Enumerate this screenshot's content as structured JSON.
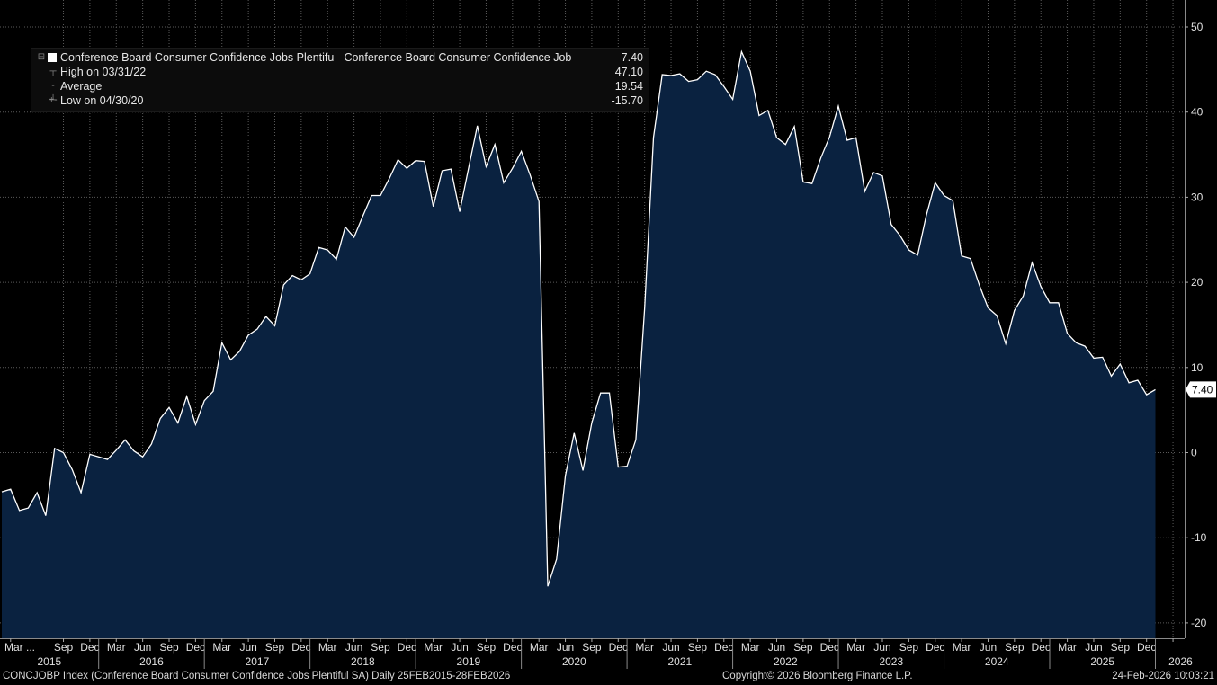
{
  "legend": {
    "series_label": "Conference Board Consumer Confidence Jobs Plentifu - Conference Board Consumer Confidence Job",
    "series_value": "7.40",
    "high_label": "High on 03/31/22",
    "high_value": "47.10",
    "avg_label": "Average",
    "avg_value": "19.54",
    "low_label": "Low on 04/30/20",
    "low_value": "-15.70"
  },
  "footer": {
    "left": "CONCJOBP Index (Conference Board Consumer Confidence Jobs Plentiful SA) Daily 25FEB2015-28FEB2026",
    "center": "Copyright© 2026 Bloomberg Finance L.P.",
    "right": "24-Feb-2026 10:03:21"
  },
  "last_value_tag": "7.40",
  "colors": {
    "background": "#000000",
    "area_fill": "#0a2240",
    "line": "#ffffff",
    "grid": "#5a5a5a"
  },
  "chart_data": {
    "type": "area",
    "ylim": [
      -22,
      52
    ],
    "y_ticks": [
      -20,
      -10,
      0,
      10,
      20,
      30,
      40,
      50
    ],
    "grid": true,
    "legend_position": "top-left",
    "x_start": "2015-02",
    "month_labels": [
      "Mar ...",
      "Sep",
      "Dec",
      "Mar",
      "Jun",
      "Sep",
      "Dec",
      "Mar",
      "Jun",
      "Sep",
      "Dec",
      "Mar",
      "Jun",
      "Sep",
      "Dec",
      "Mar",
      "Jun",
      "Sep",
      "Dec",
      "Mar",
      "Jun",
      "Sep",
      "Dec",
      "Mar",
      "Jun",
      "Sep",
      "Dec",
      "Mar",
      "Jun",
      "Sep",
      "Dec",
      "Mar",
      "Jun",
      "Sep",
      "Dec",
      "Mar",
      "Jun",
      "Sep",
      "Dec",
      "Mar",
      "Jun",
      "Sep",
      "Dec"
    ],
    "year_labels": [
      "2015",
      "2016",
      "2017",
      "2018",
      "2019",
      "2020",
      "2021",
      "2022",
      "2023",
      "2024",
      "2025",
      "2026"
    ],
    "values": [
      -4.6,
      -4.3,
      -6.8,
      -6.5,
      -4.7,
      -7.4,
      0.5,
      0.0,
      -2.0,
      -4.7,
      -0.2,
      -0.5,
      -0.8,
      0.3,
      1.5,
      0.2,
      -0.5,
      1.0,
      4.0,
      5.3,
      3.5,
      6.6,
      3.3,
      6.1,
      7.2,
      12.9,
      10.9,
      11.9,
      13.8,
      14.5,
      16.0,
      14.9,
      19.7,
      20.8,
      20.3,
      21.0,
      24.1,
      23.8,
      22.7,
      26.5,
      25.3,
      27.8,
      30.2,
      30.2,
      32.2,
      34.4,
      33.4,
      34.3,
      34.2,
      28.9,
      33.1,
      33.3,
      28.3,
      33.4,
      38.4,
      33.6,
      36.2,
      31.7,
      33.4,
      35.4,
      32.6,
      29.5,
      -15.7,
      -12.5,
      -2.7,
      2.3,
      -2.1,
      3.5,
      7.0,
      7.0,
      -1.7,
      -1.6,
      1.5,
      17.0,
      37.0,
      44.4,
      44.3,
      44.5,
      43.6,
      43.8,
      44.8,
      44.4,
      43.0,
      41.5,
      47.1,
      44.8,
      39.6,
      40.2,
      37.0,
      36.2,
      38.3,
      31.8,
      31.6,
      34.6,
      37.1,
      40.7,
      36.7,
      37.0,
      30.7,
      32.9,
      32.5,
      26.8,
      25.5,
      23.8,
      23.2,
      27.9,
      31.7,
      30.2,
      29.6,
      23.1,
      22.8,
      19.7,
      17.0,
      16.1,
      12.8,
      16.7,
      18.4,
      22.3,
      19.5,
      17.6,
      17.6,
      14.0,
      12.9,
      12.5,
      11.1,
      11.2,
      9.0,
      10.4,
      8.2,
      8.5,
      6.8,
      7.4
    ]
  }
}
